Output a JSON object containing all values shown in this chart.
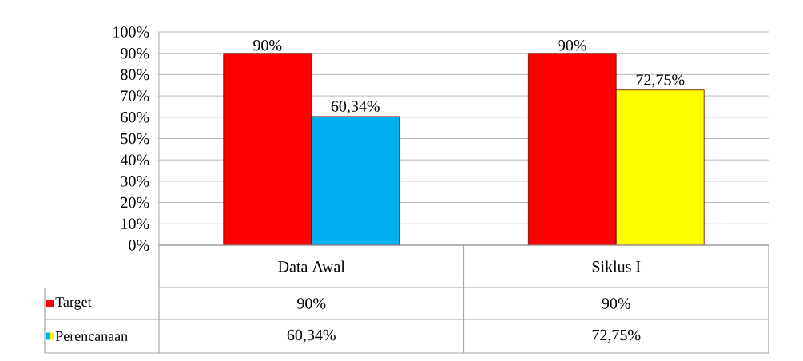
{
  "chart_data": {
    "type": "bar",
    "categories": [
      "Data Awal",
      "Siklus I"
    ],
    "series": [
      {
        "name": "Target",
        "color": "#ff0000",
        "values": [
          90,
          90
        ],
        "value_labels": [
          "90%",
          "90%"
        ]
      },
      {
        "name": "Perencanaan",
        "colors": [
          "#00b0f0",
          "#ffff00"
        ],
        "values": [
          60.34,
          72.75
        ],
        "value_labels": [
          "60,34%",
          "72,75%"
        ]
      }
    ],
    "ylim": [
      0,
      100
    ],
    "yticks": [
      {
        "value": 0,
        "label": "0%"
      },
      {
        "value": 10,
        "label": "10%"
      },
      {
        "value": 20,
        "label": "20%"
      },
      {
        "value": 30,
        "label": "30%"
      },
      {
        "value": 40,
        "label": "40%"
      },
      {
        "value": 50,
        "label": "50%"
      },
      {
        "value": 60,
        "label": "60%"
      },
      {
        "value": 70,
        "label": "70%"
      },
      {
        "value": 80,
        "label": "80%"
      },
      {
        "value": 90,
        "label": "90%"
      },
      {
        "value": 100,
        "label": "100%"
      }
    ],
    "grid": "y",
    "legend": "bottom left"
  }
}
